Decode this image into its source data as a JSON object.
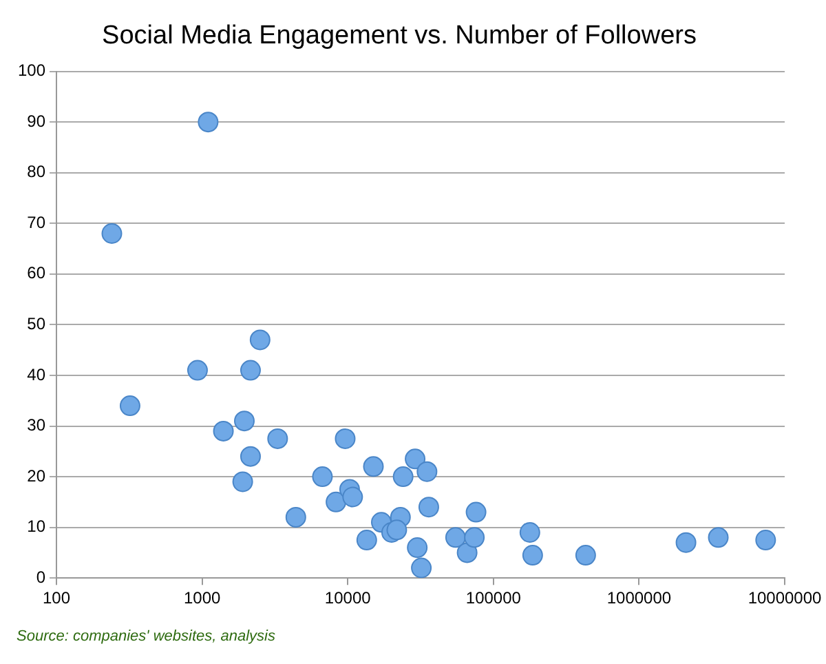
{
  "chart_data": {
    "type": "scatter",
    "title": "Social Media Engagement vs. Number of Followers",
    "x": [
      240,
      1100,
      320,
      930,
      2150,
      2500,
      1400,
      1950,
      2150,
      1900,
      3300,
      4400,
      6700,
      9600,
      8300,
      10300,
      10800,
      15000,
      13500,
      17000,
      20000,
      23000,
      21700,
      24000,
      29000,
      30000,
      32000,
      35000,
      36000,
      55000,
      66000,
      74000,
      76000,
      178000,
      186000,
      430000,
      2100000,
      3500000,
      7400000
    ],
    "values": [
      68,
      90,
      34,
      41,
      41,
      47,
      29,
      31,
      24,
      19,
      27.5,
      12,
      20,
      27.5,
      15,
      17.5,
      16,
      22,
      7.5,
      11,
      9,
      12,
      9.5,
      20,
      23.5,
      6,
      2,
      21,
      14,
      8,
      5,
      8,
      13,
      9,
      4.5,
      4.5,
      7,
      8,
      7.5
    ],
    "color": "#6fa8e6",
    "marker": "circle",
    "log": "x",
    "xlim": [
      100,
      10000000
    ],
    "xticks": [
      100,
      1000,
      10000,
      100000,
      1000000,
      10000000
    ],
    "ylim": [
      0,
      100
    ],
    "yticks": [
      0,
      10,
      20,
      30,
      40,
      50,
      60,
      70,
      80,
      90,
      100
    ],
    "grid": "y",
    "legend": false,
    "annotations": [
      "Source: companies' websites, analysis"
    ]
  }
}
